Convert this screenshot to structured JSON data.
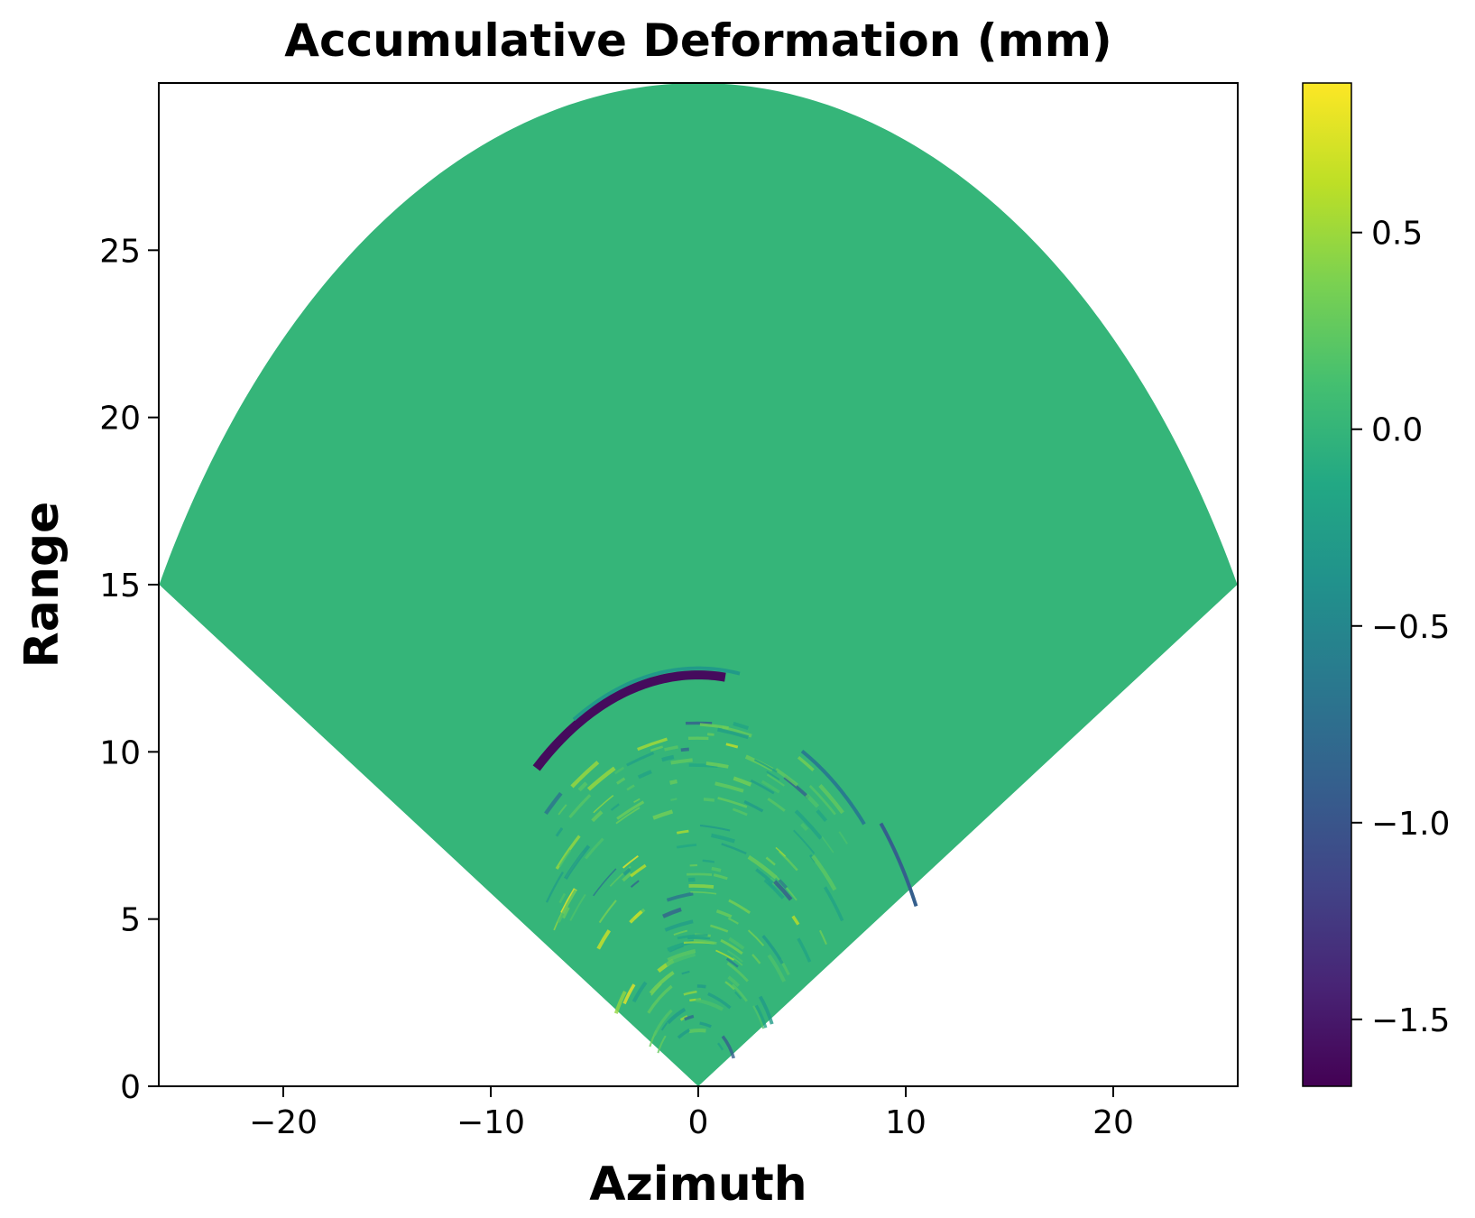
{
  "chart_data": {
    "type": "heatmap",
    "title": "Accumulative Deformation (mm)",
    "xlabel": "Azimuth",
    "ylabel": "Range",
    "xlim": [
      -26,
      26
    ],
    "ylim": [
      0,
      30
    ],
    "xticks": [
      -20,
      -10,
      0,
      10,
      20
    ],
    "xtick_labels": [
      "−20",
      "−10",
      "0",
      "10",
      "20"
    ],
    "yticks": [
      0,
      5,
      10,
      15,
      20,
      25
    ],
    "ytick_labels": [
      "0",
      "5",
      "10",
      "15",
      "20",
      "25"
    ],
    "grid": false,
    "colormap": "viridis",
    "colorbar": {
      "range": [
        -1.67,
        0.88
      ],
      "ticks": [
        0.5,
        0.0,
        -0.5,
        -1.0,
        -1.5
      ],
      "tick_labels": [
        "0.5",
        "0.0",
        "−0.5",
        "−1.0",
        "−1.5"
      ]
    },
    "field": {
      "shape": "sector",
      "apex": [
        0,
        0
      ],
      "radius": 30,
      "half_angle_deg": 60,
      "background_value": 0.0
    },
    "features": [
      {
        "kind": "arc",
        "center": [
          0,
          0
        ],
        "radius": 12.3,
        "from_azimuth": -7.8,
        "to_azimuth": 1.3,
        "value": -1.6
      },
      {
        "kind": "arc",
        "center": [
          0,
          0
        ],
        "radius": 12.5,
        "from_azimuth": -6.0,
        "to_azimuth": 2.0,
        "value": -0.3
      },
      {
        "kind": "arc",
        "center": [
          0,
          0
        ],
        "radius": 11.2,
        "from_azimuth": 5.0,
        "to_azimuth": 8.0,
        "value": -0.6
      },
      {
        "kind": "arc",
        "center": [
          0,
          0
        ],
        "radius": 11.8,
        "from_azimuth": 8.8,
        "to_azimuth": 10.5,
        "value": -0.9
      },
      {
        "kind": "noise_zone",
        "azimuth_range": [
          -7,
          7
        ],
        "range_range": [
          0,
          11
        ],
        "min_value": -1.0,
        "max_value": 0.88
      }
    ]
  }
}
